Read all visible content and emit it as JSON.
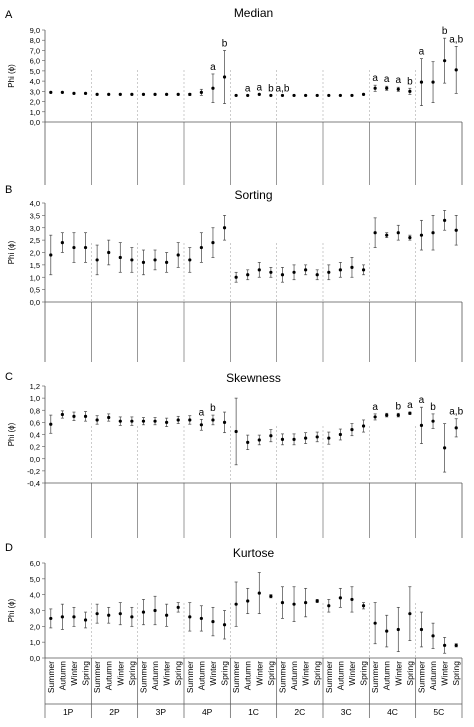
{
  "figure": {
    "x_groups": [
      "1P",
      "2P",
      "3P",
      "4P",
      "1C",
      "2C",
      "3C",
      "4C",
      "5C"
    ],
    "x_seasons": [
      "Summer",
      "Autumn",
      "Winter",
      "Spring"
    ]
  },
  "chart_data": [
    {
      "type": "scatter",
      "panel_label": "A",
      "title": "Median",
      "ylabel": "Phi (ϕ)",
      "ylim": [
        0,
        9
      ],
      "yticks": [
        "0,0",
        "1,0",
        "2,0",
        "3,0",
        "4,0",
        "5,0",
        "6,0",
        "7,0",
        "8,0",
        "9,0"
      ],
      "yticks_values": [
        0,
        1,
        2,
        3,
        4,
        5,
        6,
        7,
        8,
        9
      ],
      "mean": [
        2.9,
        2.9,
        2.8,
        2.8,
        2.7,
        2.7,
        2.7,
        2.7,
        2.7,
        2.7,
        2.7,
        2.7,
        2.7,
        2.9,
        3.3,
        4.4,
        2.6,
        2.6,
        2.7,
        2.6,
        2.6,
        2.6,
        2.6,
        2.6,
        2.6,
        2.6,
        2.6,
        2.7,
        3.3,
        3.3,
        3.2,
        3.0,
        3.9,
        3.9,
        6.0,
        5.1
      ],
      "error": [
        0,
        0,
        0,
        0,
        0,
        0,
        0,
        0,
        0,
        0,
        0,
        0,
        0.1,
        0.3,
        1.4,
        2.6,
        0,
        0,
        0,
        0,
        0,
        0,
        0,
        0,
        0,
        0,
        0,
        0,
        0.3,
        0.2,
        0.2,
        0.3,
        2.3,
        2.0,
        2.2,
        2.3
      ],
      "annotations": [
        {
          "index": 14,
          "text": "a"
        },
        {
          "index": 15,
          "text": "b"
        },
        {
          "index": 17,
          "text": "a"
        },
        {
          "index": 18,
          "text": "a"
        },
        {
          "index": 19,
          "text": "b"
        },
        {
          "index": 20,
          "text": "a,b"
        },
        {
          "index": 28,
          "text": "a"
        },
        {
          "index": 29,
          "text": "a"
        },
        {
          "index": 30,
          "text": "a"
        },
        {
          "index": 31,
          "text": "b"
        },
        {
          "index": 32,
          "text": "a"
        },
        {
          "index": 34,
          "text": "b"
        },
        {
          "index": 35,
          "text": "a,b"
        }
      ]
    },
    {
      "type": "scatter",
      "panel_label": "B",
      "title": "Sorting",
      "ylabel": "Phi (ϕ)",
      "ylim": [
        0,
        4
      ],
      "yticks": [
        "0,0",
        "0,5",
        "1,0",
        "1,5",
        "2,0",
        "2,5",
        "3,0",
        "3,5",
        "4,0"
      ],
      "yticks_values": [
        0,
        0.5,
        1,
        1.5,
        2,
        2.5,
        3,
        3.5,
        4
      ],
      "mean": [
        1.9,
        2.4,
        2.2,
        2.2,
        1.7,
        2.0,
        1.8,
        1.7,
        1.6,
        1.7,
        1.6,
        1.9,
        1.7,
        2.2,
        2.4,
        3.0,
        1.0,
        1.1,
        1.3,
        1.2,
        1.1,
        1.2,
        1.3,
        1.1,
        1.2,
        1.3,
        1.4,
        1.3,
        2.8,
        2.7,
        2.8,
        2.6,
        2.7,
        2.8,
        3.3,
        2.9
      ],
      "error": [
        0.8,
        0.4,
        0.6,
        0.6,
        0.6,
        0.5,
        0.6,
        0.5,
        0.5,
        0.4,
        0.4,
        0.5,
        0.5,
        0.6,
        0.6,
        0.5,
        0.2,
        0.2,
        0.3,
        0.2,
        0.3,
        0.3,
        0.2,
        0.2,
        0.3,
        0.3,
        0.4,
        0.2,
        0.6,
        0.1,
        0.3,
        0.1,
        0.6,
        0.7,
        0.4,
        0.6
      ],
      "annotations": []
    },
    {
      "type": "scatter",
      "panel_label": "C",
      "title": "Skewness",
      "ylabel": "Phi (ϕ)",
      "ylim": [
        -0.4,
        1.2
      ],
      "yticks": [
        "-0,4",
        "-0,2",
        "0,0",
        "0,2",
        "0,4",
        "0,6",
        "0,8",
        "1,0",
        "1,2"
      ],
      "yticks_values": [
        -0.4,
        -0.2,
        0,
        0.2,
        0.4,
        0.6,
        0.8,
        1.0,
        1.2
      ],
      "mean": [
        0.57,
        0.73,
        0.7,
        0.7,
        0.64,
        0.68,
        0.62,
        0.62,
        0.62,
        0.62,
        0.6,
        0.64,
        0.64,
        0.56,
        0.64,
        0.6,
        0.45,
        0.27,
        0.31,
        0.38,
        0.32,
        0.32,
        0.34,
        0.36,
        0.34,
        0.4,
        0.48,
        0.54,
        0.69,
        0.72,
        0.72,
        0.75,
        0.55,
        0.62,
        0.18,
        0.51
      ],
      "error": [
        0.15,
        0.06,
        0.07,
        0.08,
        0.07,
        0.06,
        0.07,
        0.07,
        0.06,
        0.06,
        0.07,
        0.06,
        0.07,
        0.09,
        0.08,
        0.17,
        0.55,
        0.12,
        0.08,
        0.1,
        0.09,
        0.09,
        0.09,
        0.08,
        0.1,
        0.09,
        0.1,
        0.1,
        0.05,
        0.03,
        0.03,
        0.02,
        0.3,
        0.12,
        0.4,
        0.15
      ],
      "annotations": [
        {
          "index": 13,
          "text": "a"
        },
        {
          "index": 14,
          "text": "b"
        },
        {
          "index": 28,
          "text": "a"
        },
        {
          "index": 30,
          "text": "b"
        },
        {
          "index": 31,
          "text": "a"
        },
        {
          "index": 32,
          "text": "a"
        },
        {
          "index": 33,
          "text": "b"
        },
        {
          "index": 35,
          "text": "a,b"
        }
      ]
    },
    {
      "type": "scatter",
      "panel_label": "D",
      "title": "Kurtose",
      "ylabel": "Phi (ϕ)",
      "ylim": [
        0,
        6
      ],
      "yticks": [
        "0,0",
        "1,0",
        "2,0",
        "3,0",
        "4,0",
        "5,0",
        "6,0"
      ],
      "yticks_values": [
        0,
        1,
        2,
        3,
        4,
        5,
        6
      ],
      "mean": [
        2.5,
        2.6,
        2.6,
        2.4,
        2.8,
        2.7,
        2.8,
        2.6,
        2.9,
        3.0,
        2.7,
        3.2,
        2.6,
        2.5,
        2.3,
        2.1,
        3.4,
        3.6,
        4.1,
        3.9,
        3.5,
        3.4,
        3.5,
        3.6,
        3.3,
        3.8,
        3.7,
        3.3,
        2.2,
        1.7,
        1.8,
        2.8,
        1.8,
        1.4,
        0.8,
        0.8
      ],
      "error": [
        0.6,
        0.8,
        0.6,
        0.5,
        0.6,
        0.5,
        0.7,
        0.6,
        0.8,
        0.9,
        0.7,
        0.3,
        0.9,
        0.8,
        0.9,
        0.9,
        1.4,
        0.8,
        1.3,
        0.1,
        1.0,
        1.1,
        0.9,
        0.1,
        0.4,
        0.6,
        0.8,
        0.2,
        1.3,
        1.0,
        1.4,
        1.7,
        1.1,
        0.8,
        0.5,
        0.1
      ],
      "annotations": []
    }
  ]
}
